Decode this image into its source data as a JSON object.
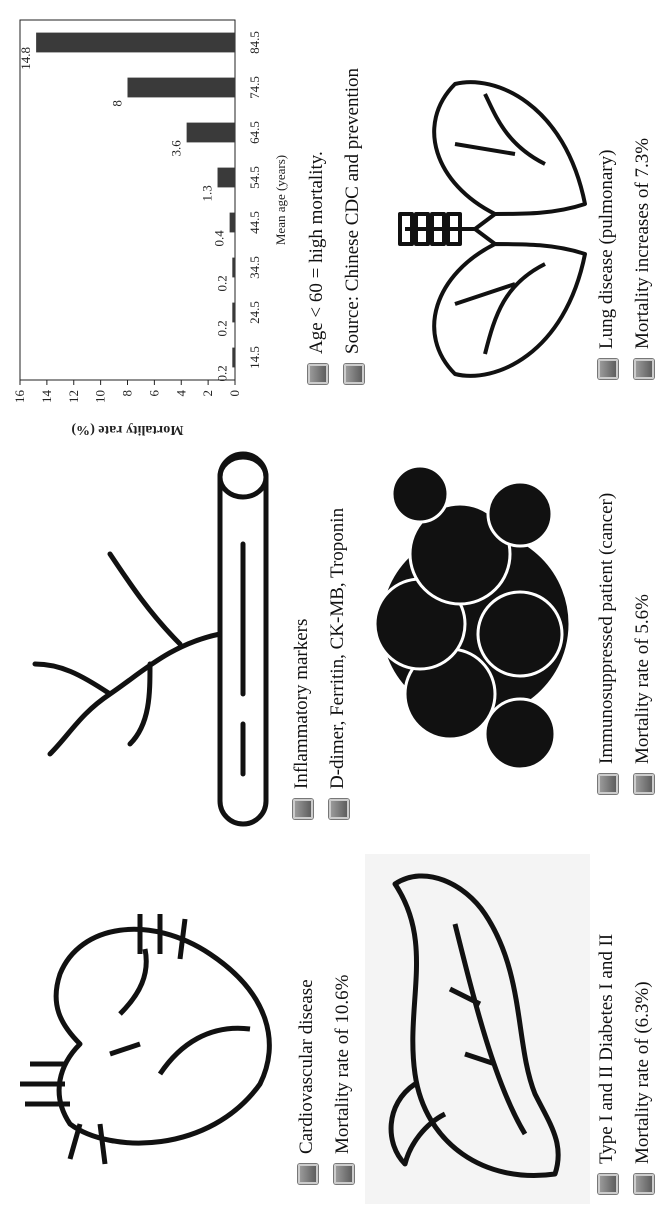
{
  "panels": [
    {
      "lines": [
        "Cardiovascular disease",
        "Mortality rate of 10.6%"
      ]
    },
    {
      "lines": [
        "Inflammatory markers",
        "D-dimer, Ferritin, CK-MB, Troponin"
      ]
    },
    {
      "lines": [
        "Type I and II Diabetes I and II",
        "Mortality rate of  (6.3%)"
      ]
    },
    {
      "lines": [
        "Immunosuppressed patient (cancer)",
        "Mortality rate of  5.6%"
      ]
    },
    {
      "lines": [
        "Lung disease (pulmonary)",
        "Mortality increases of  7.3%"
      ]
    }
  ],
  "chart_data": {
    "type": "bar",
    "categories": [
      "14.5",
      "24.5",
      "34.5",
      "44.5",
      "54.5",
      "64.5",
      "74.5",
      "84.5"
    ],
    "values": [
      0.2,
      0.2,
      0.2,
      0.4,
      1.3,
      3.6,
      8,
      14.8
    ],
    "color": "#3a3a3a",
    "x_label": "Mean age (years)",
    "y_label": "Mortality rate (%)",
    "ylim": [
      0,
      16
    ],
    "yticks": [
      0,
      2,
      4,
      6,
      8,
      10,
      12,
      14,
      16
    ],
    "notes": [
      "Age < 60 = high mortality.",
      "Source: Chinese CDC and prevention"
    ]
  }
}
